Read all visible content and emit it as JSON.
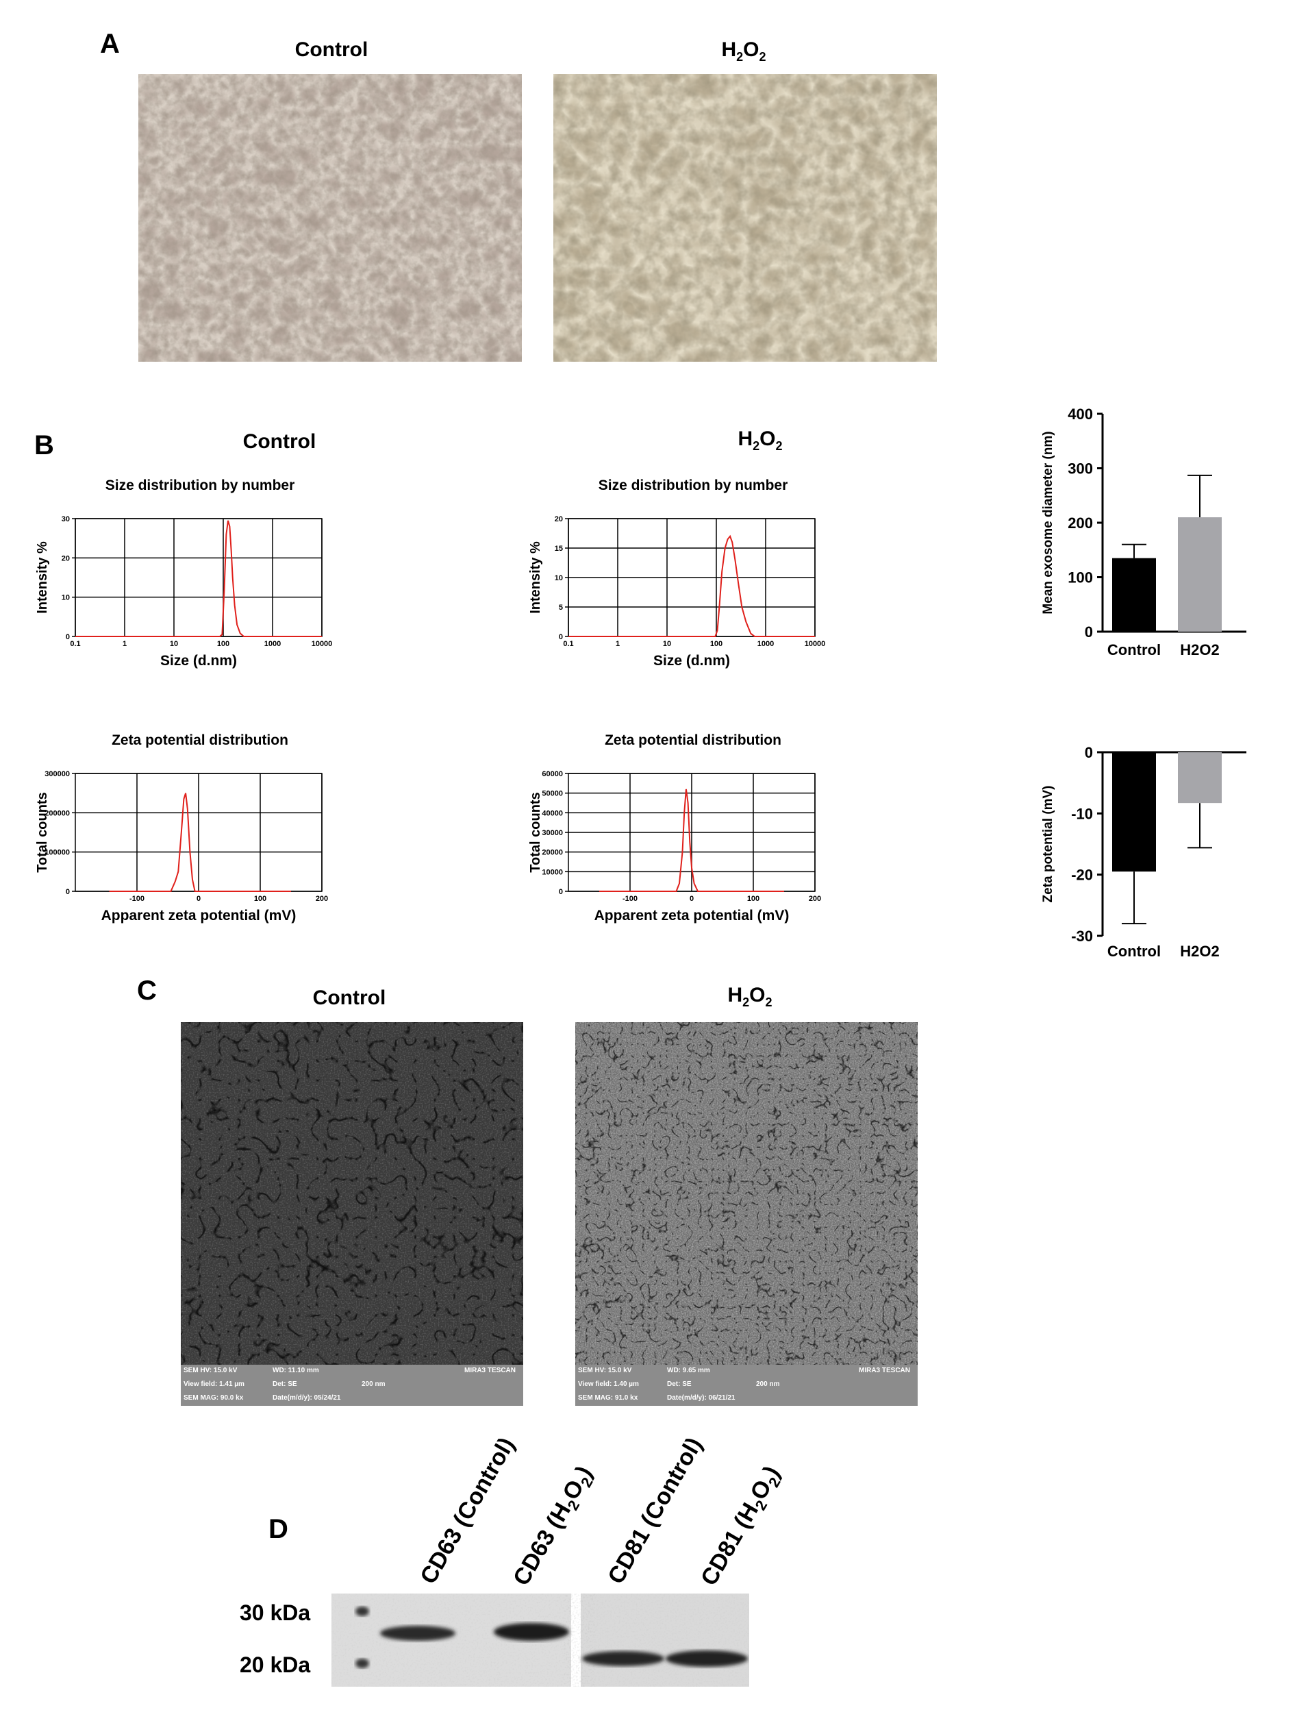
{
  "panels": {
    "A": {
      "letter": "A",
      "titles": [
        "Control",
        "H2O2"
      ]
    },
    "B": {
      "letter": "B",
      "titles": [
        "Control",
        "H2O2"
      ],
      "size_plot_title": "Size distribution by number",
      "zeta_plot_title": "Zeta potential distribution"
    },
    "C": {
      "letter": "C",
      "titles": [
        "Control",
        "H2O2"
      ],
      "sem": [
        {
          "hv": "SEM HV: 15.0 kV",
          "wd": "WD: 11.10 mm",
          "brand": "MIRA3 TESCAN",
          "view": "View field: 1.41 µm",
          "det": "Det: SE",
          "scale": "200 nm",
          "mag": "SEM MAG: 90.0 kx",
          "date": "Date(m/d/y): 05/24/21"
        },
        {
          "hv": "SEM HV: 15.0 kV",
          "wd": "WD: 9.65 mm",
          "brand": "MIRA3 TESCAN",
          "view": "View field: 1.40 µm",
          "det": "Det: SE",
          "scale": "200 nm",
          "mag": "SEM MAG: 91.0 kx",
          "date": "Date(m/d/y): 06/21/21"
        }
      ]
    },
    "D": {
      "letter": "D",
      "lanes": [
        "CD63 (Control)",
        "CD63 (H2O2)",
        "CD81 (Control)",
        "CD81 (H2O2)"
      ],
      "markers": [
        "30 kDa",
        "20 kDa"
      ]
    }
  },
  "chart_data": [
    {
      "type": "line",
      "title": "Size distribution by number",
      "xlabel": "Size (d.nm)",
      "ylabel": "Intensity %",
      "xscale": "log",
      "xlim": [
        0.1,
        10000
      ],
      "ylim": [
        0,
        30
      ],
      "xticks": [
        "0.1",
        "1",
        "10",
        "100",
        "1000",
        "10000"
      ],
      "yticks": [
        "0",
        "10",
        "20",
        "30"
      ],
      "grid": true,
      "series_color": "#e0201b",
      "x": [
        0.1,
        85,
        95,
        105,
        115,
        125,
        135,
        145,
        155,
        170,
        190,
        220,
        260,
        1000,
        10000
      ],
      "y": [
        0,
        0,
        0.5,
        12,
        26,
        29.5,
        28,
        22,
        15,
        8,
        3,
        0.8,
        0,
        0,
        0
      ]
    },
    {
      "type": "line",
      "title": "Size distribution by number",
      "xlabel": "Size (d.nm)",
      "ylabel": "Intensity %",
      "xscale": "log",
      "xlim": [
        0.1,
        10000
      ],
      "ylim": [
        0,
        20
      ],
      "xticks": [
        "0.1",
        "1",
        "10",
        "100",
        "1000",
        "10000"
      ],
      "yticks": [
        "0",
        "5",
        "10",
        "15",
        "20"
      ],
      "grid": true,
      "series_color": "#e0201b",
      "x": [
        0.1,
        95,
        105,
        115,
        130,
        150,
        170,
        190,
        210,
        240,
        280,
        330,
        400,
        500,
        600,
        10000
      ],
      "y": [
        0,
        0,
        1,
        5,
        11,
        15,
        16.5,
        17,
        16,
        13,
        9,
        5,
        2.5,
        0.5,
        0,
        0
      ]
    },
    {
      "type": "line",
      "title": "Zeta potential distribution",
      "xlabel": "Apparent zeta potential (mV)",
      "ylabel": "Total counts",
      "xlim": [
        -200,
        200
      ],
      "ylim": [
        0,
        300000
      ],
      "xticks": [
        "-100",
        "0",
        "100",
        "200"
      ],
      "yticks": [
        "0",
        "100000",
        "200000",
        "300000"
      ],
      "grid": true,
      "series_color": "#e0201b",
      "x": [
        -145,
        -45,
        -38,
        -33,
        -28,
        -24,
        -21,
        -18,
        -14,
        -10,
        -6,
        150
      ],
      "y": [
        0,
        0,
        25000,
        50000,
        150000,
        235000,
        250000,
        210000,
        100000,
        30000,
        0,
        0
      ]
    },
    {
      "type": "line",
      "title": "Zeta potential distribution",
      "xlabel": "Apparent zeta potential (mV)",
      "ylabel": "Total counts",
      "xlim": [
        -200,
        200
      ],
      "ylim": [
        0,
        60000
      ],
      "xticks": [
        "-100",
        "0",
        "100",
        "200"
      ],
      "yticks": [
        "0",
        "10000",
        "20000",
        "30000",
        "40000",
        "50000",
        "60000"
      ],
      "grid": true,
      "series_color": "#e0201b",
      "x": [
        -150,
        -25,
        -20,
        -15,
        -12,
        -9,
        -6,
        -3,
        0,
        4,
        10,
        150
      ],
      "y": [
        0,
        0,
        4000,
        20000,
        40000,
        52000,
        45000,
        25000,
        12000,
        4000,
        0,
        0
      ]
    },
    {
      "type": "bar",
      "categories": [
        "Control",
        "H2O2"
      ],
      "values": [
        135,
        210
      ],
      "errors": [
        25,
        77
      ],
      "colors": [
        "#000000",
        "#a6a6aa"
      ],
      "ylabel": "Mean exosome diameter (nm)",
      "ylim": [
        0,
        400
      ],
      "yticks": [
        "0",
        "100",
        "200",
        "300",
        "400"
      ]
    },
    {
      "type": "bar",
      "categories": [
        "Control",
        "H2O2"
      ],
      "values": [
        -19.5,
        -8.3
      ],
      "errors": [
        8.5,
        7.3
      ],
      "colors": [
        "#000000",
        "#a6a6aa"
      ],
      "ylabel": "Zeta potential (mV)",
      "ylim": [
        -30,
        0
      ],
      "yticks": [
        "0",
        "-10",
        "-20",
        "-30"
      ]
    }
  ]
}
